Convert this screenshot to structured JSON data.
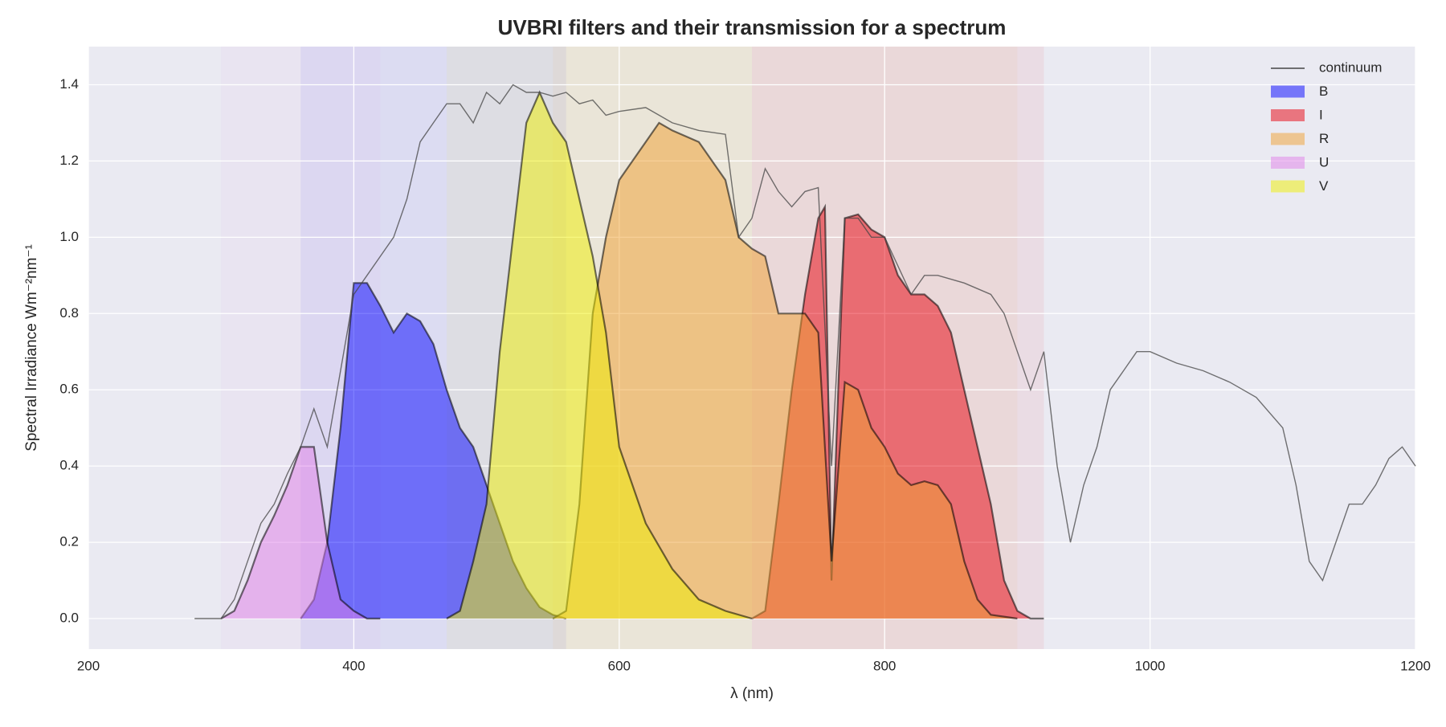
{
  "chart_data": {
    "type": "line",
    "title": "UVBRI filters and their transmission for a spectrum",
    "xlabel": "λ (nm)",
    "ylabel": "Spectral Irradiance Wm⁻²nm⁻¹",
    "xlim": [
      200,
      1200
    ],
    "ylim": [
      -0.08,
      1.5
    ],
    "xticks": [
      200,
      400,
      600,
      800,
      1000,
      1200
    ],
    "yticks": [
      {
        "value": 0,
        "label": "0.0"
      },
      {
        "value": 0.2,
        "label": "0.2"
      },
      {
        "value": 0.4,
        "label": "0.4"
      },
      {
        "value": 0.6,
        "label": "0.6"
      },
      {
        "value": 0.8,
        "label": "0.8"
      },
      {
        "value": 1.0,
        "label": "1.0"
      },
      {
        "value": 1.2,
        "label": "1.2"
      },
      {
        "value": 1.4,
        "label": "1.4"
      }
    ],
    "grid": true,
    "legend": "upper right",
    "series": [
      {
        "name": "continuum",
        "color": "#444444",
        "kind": "line",
        "x": [
          280,
          300,
          310,
          320,
          330,
          340,
          350,
          360,
          370,
          380,
          390,
          400,
          410,
          420,
          430,
          440,
          450,
          460,
          470,
          480,
          490,
          500,
          510,
          520,
          530,
          540,
          550,
          560,
          570,
          580,
          590,
          600,
          620,
          640,
          660,
          680,
          690,
          700,
          710,
          720,
          730,
          740,
          750,
          760,
          770,
          780,
          790,
          800,
          820,
          830,
          840,
          860,
          880,
          890,
          900,
          910,
          920,
          930,
          940,
          950,
          960,
          970,
          980,
          990,
          1000,
          1020,
          1040,
          1060,
          1080,
          1100,
          1110,
          1120,
          1130,
          1140,
          1150,
          1160,
          1170,
          1180,
          1190,
          1200
        ],
        "values": [
          0,
          0,
          0.05,
          0.15,
          0.25,
          0.3,
          0.38,
          0.45,
          0.55,
          0.45,
          0.65,
          0.85,
          0.9,
          0.95,
          1.0,
          1.1,
          1.25,
          1.3,
          1.35,
          1.35,
          1.3,
          1.38,
          1.35,
          1.4,
          1.38,
          1.38,
          1.37,
          1.38,
          1.35,
          1.36,
          1.32,
          1.33,
          1.34,
          1.3,
          1.28,
          1.27,
          1.0,
          1.05,
          1.18,
          1.12,
          1.08,
          1.12,
          1.13,
          0.4,
          1.05,
          1.05,
          1.0,
          1.0,
          0.85,
          0.9,
          0.9,
          0.88,
          0.85,
          0.8,
          0.7,
          0.6,
          0.7,
          0.4,
          0.2,
          0.35,
          0.45,
          0.6,
          0.65,
          0.7,
          0.7,
          0.67,
          0.65,
          0.62,
          0.58,
          0.5,
          0.35,
          0.15,
          0.1,
          0.2,
          0.3,
          0.3,
          0.35,
          0.42,
          0.45,
          0.4
        ]
      },
      {
        "name": "B",
        "color": "#0000ff",
        "kind": "area",
        "x": [
          360,
          370,
          380,
          390,
          400,
          410,
          420,
          430,
          440,
          450,
          460,
          470,
          480,
          490,
          500,
          510,
          520,
          530,
          540,
          550,
          560
        ],
        "values": [
          0,
          0.05,
          0.2,
          0.5,
          0.88,
          0.88,
          0.82,
          0.75,
          0.8,
          0.78,
          0.72,
          0.6,
          0.5,
          0.45,
          0.35,
          0.25,
          0.15,
          0.08,
          0.03,
          0.01,
          0
        ]
      },
      {
        "name": "I",
        "color": "#e8000b",
        "kind": "area",
        "x": [
          700,
          710,
          720,
          730,
          740,
          750,
          755,
          760,
          765,
          770,
          780,
          790,
          800,
          810,
          820,
          830,
          840,
          850,
          860,
          870,
          880,
          890,
          900,
          910,
          920
        ],
        "values": [
          0,
          0.02,
          0.3,
          0.6,
          0.85,
          1.05,
          1.08,
          0.1,
          0.6,
          1.05,
          1.06,
          1.02,
          1.0,
          0.9,
          0.85,
          0.85,
          0.82,
          0.75,
          0.6,
          0.45,
          0.3,
          0.1,
          0.02,
          0,
          0
        ]
      },
      {
        "name": "R",
        "color": "#f0a030",
        "kind": "area",
        "x": [
          550,
          560,
          570,
          580,
          590,
          600,
          610,
          620,
          630,
          640,
          660,
          670,
          680,
          690,
          700,
          710,
          720,
          730,
          740,
          750,
          760,
          770,
          780,
          790,
          800,
          810,
          820,
          830,
          840,
          850,
          860,
          870,
          880,
          900
        ],
        "values": [
          0,
          0.02,
          0.3,
          0.8,
          1.0,
          1.15,
          1.2,
          1.25,
          1.3,
          1.28,
          1.25,
          1.2,
          1.15,
          1.0,
          0.97,
          0.95,
          0.8,
          0.8,
          0.8,
          0.75,
          0.15,
          0.62,
          0.6,
          0.5,
          0.45,
          0.38,
          0.35,
          0.36,
          0.35,
          0.3,
          0.15,
          0.05,
          0.01,
          0
        ]
      },
      {
        "name": "U",
        "color": "#e080e8",
        "kind": "area",
        "x": [
          300,
          310,
          320,
          330,
          340,
          350,
          360,
          370,
          380,
          390,
          400,
          410,
          420
        ],
        "values": [
          0,
          0.02,
          0.1,
          0.2,
          0.27,
          0.35,
          0.45,
          0.45,
          0.2,
          0.05,
          0.02,
          0,
          0
        ]
      },
      {
        "name": "V",
        "color": "#f0f000",
        "kind": "area",
        "x": [
          470,
          480,
          490,
          500,
          510,
          520,
          530,
          540,
          550,
          560,
          570,
          580,
          590,
          600,
          610,
          620,
          640,
          660,
          680,
          700
        ],
        "values": [
          0,
          0.02,
          0.15,
          0.3,
          0.7,
          1.0,
          1.3,
          1.38,
          1.3,
          1.25,
          1.1,
          0.95,
          0.75,
          0.45,
          0.35,
          0.25,
          0.13,
          0.05,
          0.02,
          0
        ]
      }
    ]
  }
}
